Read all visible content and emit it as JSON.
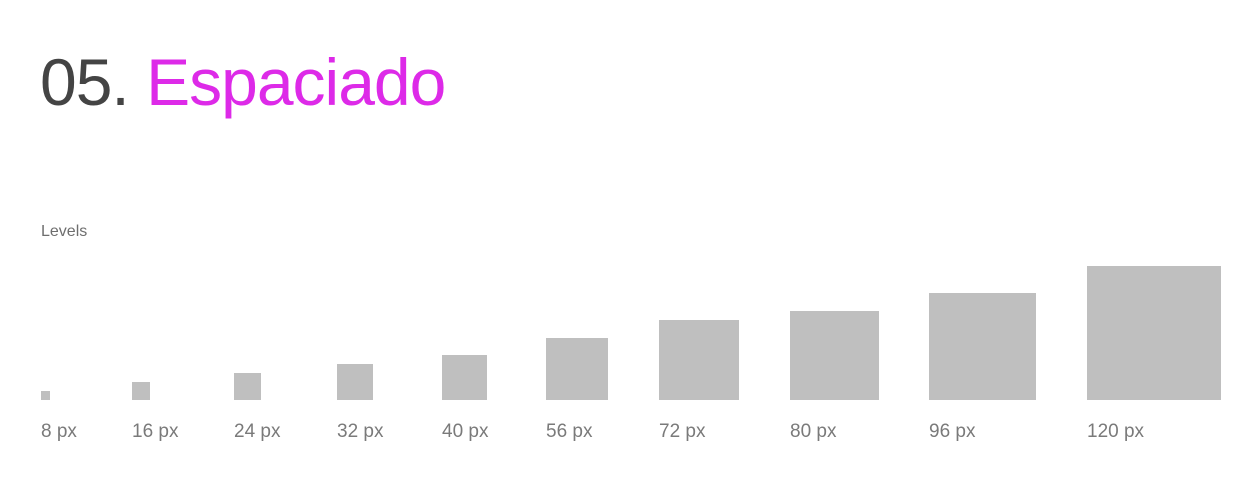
{
  "header": {
    "number": "05.",
    "title": "Espaciado"
  },
  "section": {
    "label": "Levels"
  },
  "colors": {
    "accent": "#dd2ae8",
    "number": "#444444",
    "square": "#bfbfbf",
    "label": "#7a7a7a"
  },
  "levels": [
    {
      "value": 8,
      "label": "8 px"
    },
    {
      "value": 16,
      "label": "16 px"
    },
    {
      "value": 24,
      "label": "24 px"
    },
    {
      "value": 32,
      "label": "32 px"
    },
    {
      "value": 40,
      "label": "40 px"
    },
    {
      "value": 56,
      "label": "56 px"
    },
    {
      "value": 72,
      "label": "72 px"
    },
    {
      "value": 80,
      "label": "80 px"
    },
    {
      "value": 96,
      "label": "96 px"
    },
    {
      "value": 120,
      "label": "120 px"
    }
  ]
}
